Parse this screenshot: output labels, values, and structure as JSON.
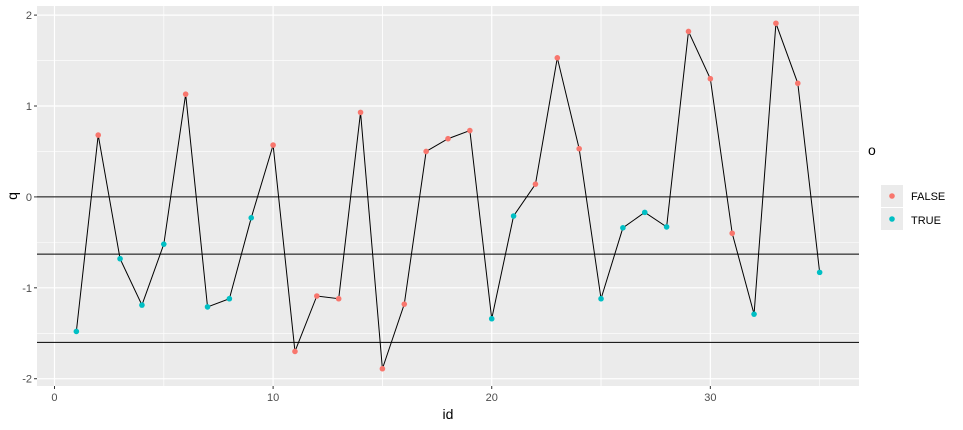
{
  "chart_data": {
    "type": "line",
    "xlabel": "id",
    "ylabel": "q",
    "xlim": [
      -0.8,
      36.8
    ],
    "ylim": [
      -2.08,
      2.1
    ],
    "x_ticks": [
      0,
      10,
      20,
      30
    ],
    "y_ticks": [
      -2,
      -1,
      0,
      1,
      2
    ],
    "x_tick_labels": [
      "0",
      "10",
      "20",
      "30"
    ],
    "y_tick_labels": [
      "-2",
      "-1",
      "0",
      "1",
      "2"
    ],
    "grid": true,
    "hlines": [
      0,
      -0.63,
      -1.6
    ],
    "legend": {
      "title": "o",
      "placement": "right",
      "entries": [
        {
          "label": "FALSE",
          "color": "#F8766D"
        },
        {
          "label": "TRUE",
          "color": "#00BFC4"
        }
      ]
    },
    "colors": {
      "FALSE": "#F8766D",
      "TRUE": "#00BFC4",
      "line": "#000000",
      "panel": "#EBEBEB",
      "grid": "#FFFFFF"
    },
    "points": [
      {
        "x": 1,
        "y": -1.48,
        "o": "TRUE"
      },
      {
        "x": 2,
        "y": 0.68,
        "o": "FALSE"
      },
      {
        "x": 3,
        "y": -0.68,
        "o": "TRUE"
      },
      {
        "x": 4,
        "y": -1.19,
        "o": "TRUE"
      },
      {
        "x": 5,
        "y": -0.52,
        "o": "TRUE"
      },
      {
        "x": 6,
        "y": 1.13,
        "o": "FALSE"
      },
      {
        "x": 7,
        "y": -1.21,
        "o": "TRUE"
      },
      {
        "x": 8,
        "y": -1.12,
        "o": "TRUE"
      },
      {
        "x": 9,
        "y": -0.23,
        "o": "TRUE"
      },
      {
        "x": 10,
        "y": 0.57,
        "o": "FALSE"
      },
      {
        "x": 11,
        "y": -1.7,
        "o": "FALSE"
      },
      {
        "x": 12,
        "y": -1.09,
        "o": "FALSE"
      },
      {
        "x": 13,
        "y": -1.12,
        "o": "FALSE"
      },
      {
        "x": 14,
        "y": 0.93,
        "o": "FALSE"
      },
      {
        "x": 15,
        "y": -1.89,
        "o": "FALSE"
      },
      {
        "x": 16,
        "y": -1.18,
        "o": "FALSE"
      },
      {
        "x": 17,
        "y": 0.5,
        "o": "FALSE"
      },
      {
        "x": 18,
        "y": 0.64,
        "o": "FALSE"
      },
      {
        "x": 19,
        "y": 0.73,
        "o": "FALSE"
      },
      {
        "x": 20,
        "y": -1.34,
        "o": "TRUE"
      },
      {
        "x": 21,
        "y": -0.21,
        "o": "TRUE"
      },
      {
        "x": 22,
        "y": 0.14,
        "o": "FALSE"
      },
      {
        "x": 23,
        "y": 1.53,
        "o": "FALSE"
      },
      {
        "x": 24,
        "y": 0.53,
        "o": "FALSE"
      },
      {
        "x": 25,
        "y": -1.12,
        "o": "TRUE"
      },
      {
        "x": 26,
        "y": -0.34,
        "o": "TRUE"
      },
      {
        "x": 27,
        "y": -0.17,
        "o": "TRUE"
      },
      {
        "x": 28,
        "y": -0.33,
        "o": "TRUE"
      },
      {
        "x": 29,
        "y": 1.82,
        "o": "FALSE"
      },
      {
        "x": 30,
        "y": 1.3,
        "o": "FALSE"
      },
      {
        "x": 31,
        "y": -0.4,
        "o": "FALSE"
      },
      {
        "x": 32,
        "y": -1.29,
        "o": "TRUE"
      },
      {
        "x": 33,
        "y": 1.91,
        "o": "FALSE"
      },
      {
        "x": 34,
        "y": 1.25,
        "o": "FALSE"
      },
      {
        "x": 35,
        "y": -0.83,
        "o": "TRUE"
      }
    ]
  }
}
